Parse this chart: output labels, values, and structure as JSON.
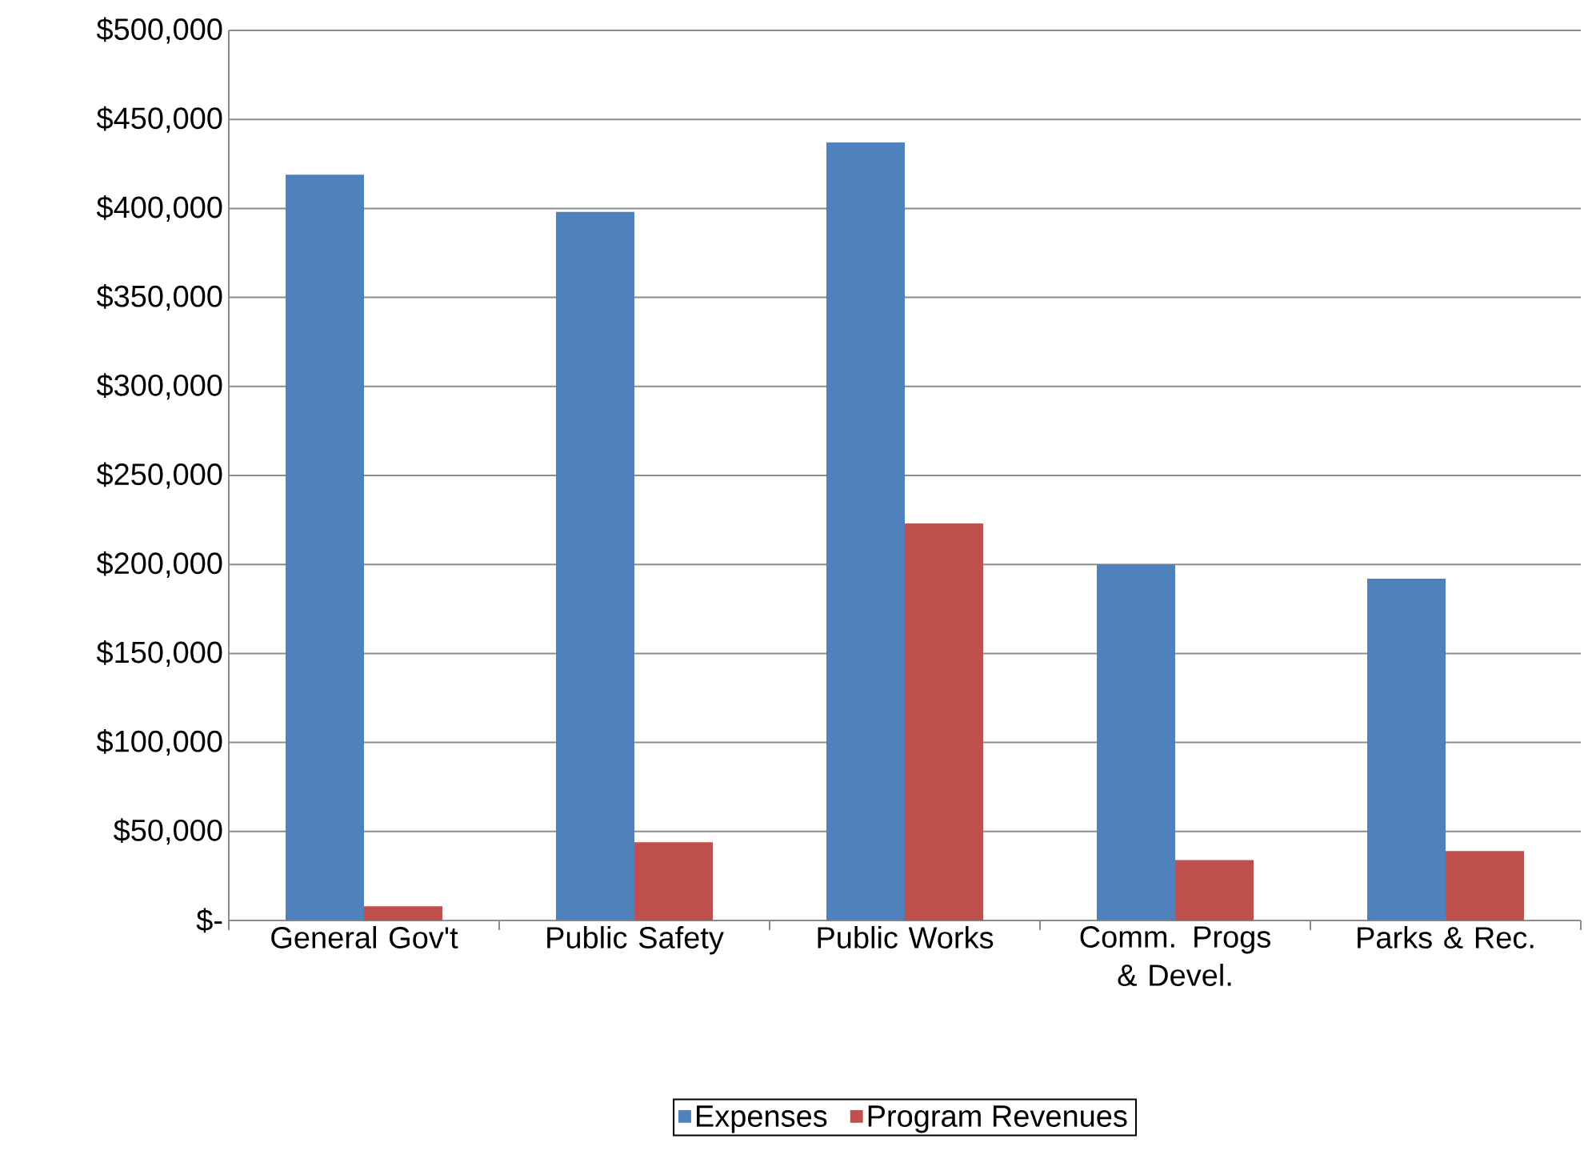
{
  "chart_data": {
    "type": "bar",
    "categories": [
      "General Gov't",
      "Public Safety",
      "Public Works",
      "Comm. Progs & Devel.",
      "Parks & Rec."
    ],
    "series": [
      {
        "name": "Expenses",
        "color": "#4f81bd",
        "values": [
          419000,
          398000,
          437000,
          200000,
          192000
        ]
      },
      {
        "name": "Program Revenues",
        "color": "#c0504d",
        "values": [
          8000,
          44000,
          223000,
          34000,
          39000
        ]
      }
    ],
    "ylim": [
      0,
      500000
    ],
    "yticks": [
      {
        "value": 0,
        "label": "$-"
      },
      {
        "value": 50000,
        "label": "$50,000"
      },
      {
        "value": 100000,
        "label": "$100,000"
      },
      {
        "value": 150000,
        "label": "$150,000"
      },
      {
        "value": 200000,
        "label": "$200,000"
      },
      {
        "value": 250000,
        "label": "$250,000"
      },
      {
        "value": 300000,
        "label": "$300,000"
      },
      {
        "value": 350000,
        "label": "$350,000"
      },
      {
        "value": 400000,
        "label": "$400,000"
      },
      {
        "value": 450000,
        "label": "$450,000"
      },
      {
        "value": 500000,
        "label": "$500,000"
      }
    ],
    "grid": "y",
    "legend": "bottom"
  }
}
